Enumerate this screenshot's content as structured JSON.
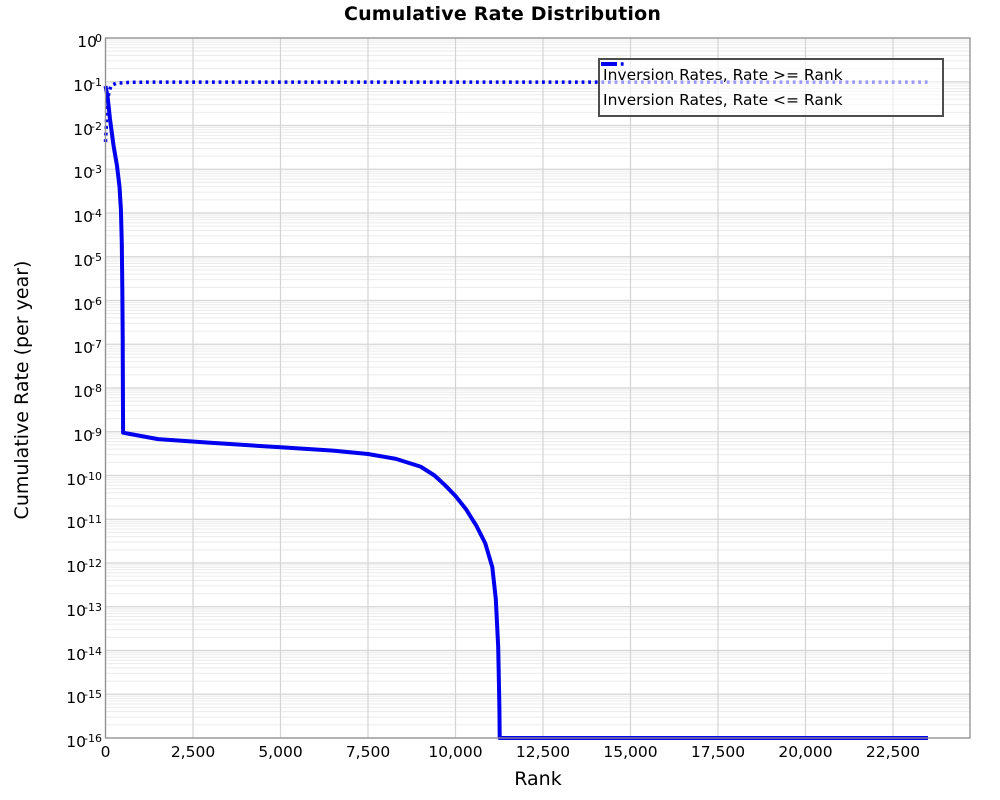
{
  "chart_data": {
    "type": "line",
    "title": "Cumulative Rate Distribution",
    "xlabel": "Rank",
    "ylabel": "Cumulative Rate (per year)",
    "x_axis": {
      "min": 0,
      "max": 24700,
      "tick_values": [
        0,
        2500,
        5000,
        7500,
        10000,
        12500,
        15000,
        17500,
        20000,
        22500
      ],
      "tick_labels": [
        "0",
        "2,500",
        "5,000",
        "7,500",
        "10,000",
        "12,500",
        "15,000",
        "17,500",
        "20,000",
        "22,500"
      ]
    },
    "y_axis": {
      "scale": "log10",
      "top_exponent": 0,
      "bottom_exponent": -16,
      "tick_exponents": [
        "0",
        "-1",
        "-2",
        "-3",
        "-4",
        "-5",
        "-6",
        "-7",
        "-8",
        "-9",
        "-10",
        "-11",
        "-12",
        "-13",
        "-14",
        "-15",
        "-16"
      ]
    },
    "grid": {
      "vertical_major": true,
      "horizontal_major": true,
      "horizontal_log_minor": true
    },
    "legend": {
      "position": "top-right"
    },
    "series": [
      {
        "name": "Inversion Rates, Rate >= Rank",
        "style": "solid",
        "color": "#0000EE",
        "line_width": 4,
        "points": [
          [
            0,
            0.08
          ],
          [
            60,
            0.045
          ],
          [
            130,
            0.014
          ],
          [
            230,
            0.0035
          ],
          [
            330,
            0.0012
          ],
          [
            400,
            0.0004
          ],
          [
            440,
            0.00012
          ],
          [
            465,
            2e-05
          ],
          [
            480,
            2e-06
          ],
          [
            490,
            1.5e-07
          ],
          [
            497,
            8e-09
          ],
          [
            502,
            9.5e-10
          ],
          [
            1500,
            6.8e-10
          ],
          [
            3000,
            5.6e-10
          ],
          [
            5000,
            4.4e-10
          ],
          [
            6500,
            3.7e-10
          ],
          [
            7500,
            3.1e-10
          ],
          [
            8300,
            2.4e-10
          ],
          [
            9000,
            1.6e-10
          ],
          [
            9400,
            1e-10
          ],
          [
            9700,
            6e-11
          ],
          [
            10000,
            3.4e-11
          ],
          [
            10300,
            1.7e-11
          ],
          [
            10600,
            7e-12
          ],
          [
            10850,
            2.8e-12
          ],
          [
            11050,
            8e-13
          ],
          [
            11150,
            1.5e-13
          ],
          [
            11220,
            1.2e-14
          ],
          [
            11255,
            5e-16
          ],
          [
            11262,
            1e-16
          ],
          [
            23500,
            1e-16
          ]
        ]
      },
      {
        "name": "Inversion Rates, Rate <= Rank",
        "style": "dotted",
        "color": "#0000EE",
        "line_width": 3.5,
        "points": [
          [
            0,
            0.0042
          ],
          [
            40,
            0.02
          ],
          [
            90,
            0.055
          ],
          [
            160,
            0.082
          ],
          [
            300,
            0.092
          ],
          [
            700,
            0.097
          ],
          [
            1500,
            0.098
          ],
          [
            23500,
            0.098
          ]
        ]
      }
    ]
  },
  "colors": {
    "line_blue": "#0000EE",
    "grid_major": "#d4d4d4",
    "grid_minor": "#ebebeb",
    "spine": "#909090",
    "legend_border": "#4d4d4d"
  }
}
